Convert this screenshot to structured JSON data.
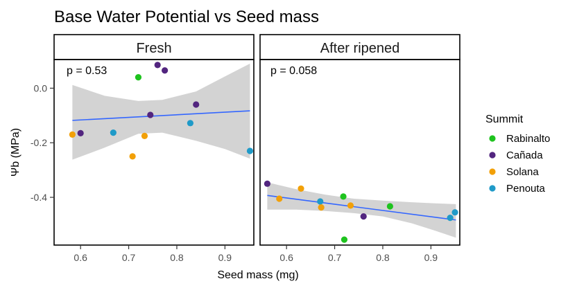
{
  "chart_data": {
    "type": "scatter",
    "title": "Base Water Potential vs Seed mass",
    "xlabel": "Seed mass (mg)",
    "ylabel": "Ψb (MPa)",
    "xlim": [
      0.545,
      0.96
    ],
    "ylim": [
      -0.575,
      0.105
    ],
    "x_ticks": [
      0.6,
      0.7,
      0.8,
      0.9
    ],
    "x_tick_labels": [
      "0.6",
      "0.7",
      "0.8",
      "0.9"
    ],
    "y_ticks": [
      0.0,
      -0.2,
      -0.4
    ],
    "y_tick_labels": [
      "0.0",
      "-0.2",
      "-0.4"
    ],
    "grid": false,
    "legend": {
      "title": "Summit",
      "placement": "right",
      "entries": [
        {
          "name": "Rabinalto",
          "color": "#1ec31e"
        },
        {
          "name": "Cañada",
          "color": "#52257f"
        },
        {
          "name": "Solana",
          "color": "#f2a007"
        },
        {
          "name": "Penouta",
          "color": "#1f9ac8"
        }
      ]
    },
    "panels": [
      {
        "strip": "Fresh",
        "annotation": "p = 0.53",
        "points": [
          {
            "group": "Rabinalto",
            "x": 0.72,
            "y": 0.04
          },
          {
            "group": "Cañada",
            "x": 0.76,
            "y": 0.085
          },
          {
            "group": "Cañada",
            "x": 0.775,
            "y": 0.065
          },
          {
            "group": "Cañada",
            "x": 0.84,
            "y": -0.06
          },
          {
            "group": "Cañada",
            "x": 0.745,
            "y": -0.098
          },
          {
            "group": "Cañada",
            "x": 0.6,
            "y": -0.165
          },
          {
            "group": "Solana",
            "x": 0.583,
            "y": -0.17
          },
          {
            "group": "Solana",
            "x": 0.733,
            "y": -0.175
          },
          {
            "group": "Solana",
            "x": 0.708,
            "y": -0.25
          },
          {
            "group": "Penouta",
            "x": 0.668,
            "y": -0.163
          },
          {
            "group": "Penouta",
            "x": 0.828,
            "y": -0.128
          },
          {
            "group": "Penouta",
            "x": 0.952,
            "y": -0.23
          }
        ],
        "fit": {
          "x": [
            0.583,
            0.952
          ],
          "y": [
            -0.118,
            -0.083
          ]
        },
        "ci_band": {
          "x": [
            0.583,
            0.65,
            0.72,
            0.77,
            0.84,
            0.9,
            0.952
          ],
          "upper": [
            0.012,
            -0.028,
            -0.047,
            -0.043,
            -0.012,
            0.043,
            0.09
          ],
          "lower": [
            -0.262,
            -0.218,
            -0.167,
            -0.163,
            -0.193,
            -0.223,
            -0.258
          ]
        }
      },
      {
        "strip": "After ripened",
        "annotation": "p = 0.058",
        "points": [
          {
            "group": "Cañada",
            "x": 0.56,
            "y": -0.35
          },
          {
            "group": "Solana",
            "x": 0.585,
            "y": -0.405
          },
          {
            "group": "Solana",
            "x": 0.63,
            "y": -0.368
          },
          {
            "group": "Penouta",
            "x": 0.67,
            "y": -0.415
          },
          {
            "group": "Solana",
            "x": 0.672,
            "y": -0.437
          },
          {
            "group": "Rabinalto",
            "x": 0.718,
            "y": -0.397
          },
          {
            "group": "Solana",
            "x": 0.733,
            "y": -0.43
          },
          {
            "group": "Cañada",
            "x": 0.76,
            "y": -0.47
          },
          {
            "group": "Rabinalto",
            "x": 0.815,
            "y": -0.433
          },
          {
            "group": "Rabinalto",
            "x": 0.72,
            "y": -0.555
          },
          {
            "group": "Penouta",
            "x": 0.94,
            "y": -0.475
          },
          {
            "group": "Penouta",
            "x": 0.95,
            "y": -0.455
          }
        ],
        "fit": {
          "x": [
            0.56,
            0.952
          ],
          "y": [
            -0.393,
            -0.483
          ]
        },
        "ci_band": {
          "x": [
            0.56,
            0.62,
            0.68,
            0.74,
            0.8,
            0.86,
            0.91,
            0.952
          ],
          "upper": [
            -0.345,
            -0.37,
            -0.39,
            -0.405,
            -0.412,
            -0.418,
            -0.422,
            -0.425
          ],
          "lower": [
            -0.445,
            -0.445,
            -0.45,
            -0.458,
            -0.47,
            -0.495,
            -0.523,
            -0.548
          ]
        }
      }
    ]
  }
}
